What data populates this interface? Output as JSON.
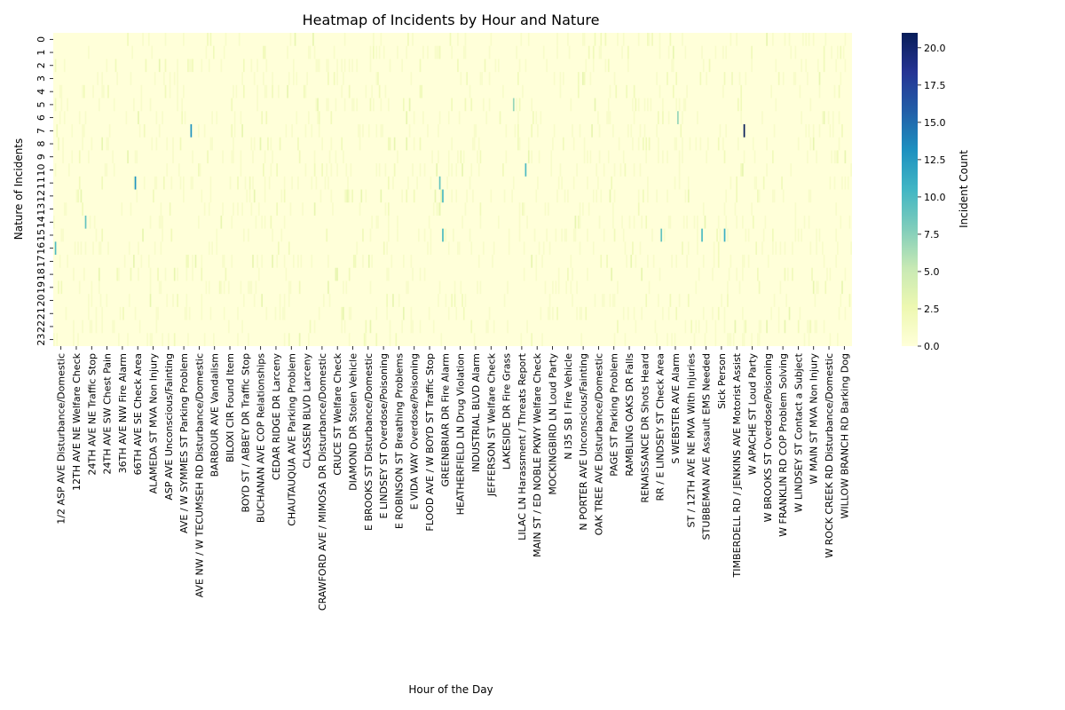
{
  "chart_data": {
    "type": "heatmap",
    "title": "Heatmap of Incidents by Hour and Nature",
    "xlabel": "Hour of the Day",
    "ylabel": "Nature of Incidents",
    "colorbar_label": "Incident Count",
    "colormap": "YlGnBu",
    "value_range": [
      0,
      21
    ],
    "colorbar_ticks": [
      "0.0",
      "2.5",
      "5.0",
      "7.5",
      "10.0",
      "12.5",
      "15.0",
      "17.5",
      "20.0"
    ],
    "y_tick_labels": [
      "0",
      "1",
      "2",
      "3",
      "4",
      "5",
      "6",
      "7",
      "8",
      "9",
      "10",
      "11",
      "12",
      "13",
      "14",
      "15",
      "16",
      "17",
      "18",
      "19",
      "20",
      "21",
      "22",
      "23"
    ],
    "x_tick_labels": [
      "1/2 ASP AVE Disturbance/Domestic",
      "12TH AVE NE Welfare Check",
      "24TH AVE NE Traffic Stop",
      "24TH AVE SW Chest Pain",
      "36TH AVE NW Fire Alarm",
      "66TH AVE SE Check Area",
      "ALAMEDA ST MVA Non Injury",
      "ASP AVE Unconscious/Fainting",
      "AVE / W SYMMES ST Parking Problem",
      "AVE NW / W TECUMSEH RD Disturbance/Domestic",
      "BARBOUR AVE Vandalism",
      "BILOXI CIR Found Item",
      "BOYD ST / ABBEY DR Traffic Stop",
      "BUCHANAN AVE COP Relationships",
      "CEDAR RIDGE DR Larceny",
      "CHAUTAUQUA AVE Parking Problem",
      "CLASSEN BLVD Larceny",
      "CRAWFORD AVE / MIMOSA DR Disturbance/Domestic",
      "CRUCE ST Welfare Check",
      "DIAMOND DR Stolen Vehicle",
      "E BROOKS ST Disturbance/Domestic",
      "E LINDSEY ST Overdose/Poisoning",
      "E ROBINSON ST Breathing Problems",
      "E VIDA WAY Overdose/Poisoning",
      "FLOOD AVE / W BOYD ST Traffic Stop",
      "GREENBRIAR DR Fire Alarm",
      "HEATHERFIELD LN Drug Violation",
      "INDUSTRIAL BLVD Alarm",
      "JEFFERSON ST Welfare Check",
      "LAKESIDE DR Fire Grass",
      "LILAC LN Harassment / Threats Report",
      "MAIN ST / ED NOBLE PKWY Welfare Check",
      "MOCKINGBIRD LN Loud Party",
      "N I35 SB I Fire Vehicle",
      "N PORTER AVE Unconscious/Fainting",
      "OAK TREE AVE Disturbance/Domestic",
      "PAGE ST Parking Problem",
      "RAMBLING OAKS DR Falls",
      "RENAISSANCE DR Shots Heard",
      "RR / E LINDSEY ST Check Area",
      "S WEBSTER AVE Alarm",
      "ST / 12TH AVE NE MVA With Injuries",
      "STUBBEMAN AVE Assault EMS Needed",
      "Sick Person",
      "TIMBERDELL RD / JENKINS AVE Motorist Assist",
      "W APACHE ST Loud Party",
      "W BROOKS ST Overdose/Poisoning",
      "W FRANKLIN RD COP Problem Solving",
      "W LINDSEY ST Contact a Subject",
      "W MAIN ST MVA Non Injury",
      "W ROCK CREEK RD Disturbance/Domestic",
      "WILLOW BRANCH RD Barking Dog"
    ],
    "n_columns": 530,
    "n_rows": 24,
    "notable_cells": [
      {
        "hour": 7,
        "column_index": 458,
        "count": 21
      },
      {
        "hour": 7,
        "column_index": 91,
        "count": 13
      },
      {
        "hour": 11,
        "column_index": 54,
        "count": 13
      },
      {
        "hour": 12,
        "column_index": 258,
        "count": 10
      },
      {
        "hour": 15,
        "column_index": 258,
        "count": 10
      },
      {
        "hour": 15,
        "column_index": 445,
        "count": 11
      },
      {
        "hour": 15,
        "column_index": 430,
        "count": 10
      },
      {
        "hour": 15,
        "column_index": 403,
        "count": 9
      },
      {
        "hour": 16,
        "column_index": 1,
        "count": 10
      },
      {
        "hour": 10,
        "column_index": 313,
        "count": 10
      },
      {
        "hour": 14,
        "column_index": 21,
        "count": 9
      },
      {
        "hour": 11,
        "column_index": 256,
        "count": 9
      },
      {
        "hour": 5,
        "column_index": 305,
        "count": 7
      },
      {
        "hour": 6,
        "column_index": 414,
        "count": 7
      }
    ],
    "background_count": 0,
    "grid": false
  }
}
